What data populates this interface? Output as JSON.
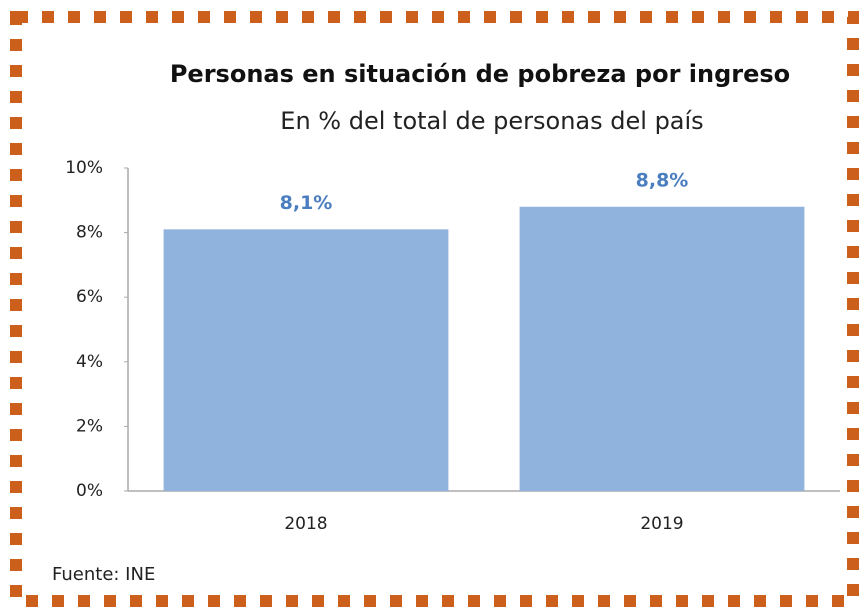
{
  "chart_data": {
    "type": "bar",
    "title": "Personas en situación de pobreza por ingreso",
    "subtitle": "En % del total de personas del país",
    "categories": [
      "2018",
      "2019"
    ],
    "values": [
      8.1,
      8.8
    ],
    "value_labels": [
      "8,1%",
      "8,8%"
    ],
    "color": "#8fb3dc",
    "ylim": [
      0,
      10
    ],
    "yticks": [
      {
        "value": 0,
        "label": "0%"
      },
      {
        "value": 2,
        "label": "2%"
      },
      {
        "value": 4,
        "label": "4%"
      },
      {
        "value": 6,
        "label": "6%"
      },
      {
        "value": 8,
        "label": "8%"
      },
      {
        "value": 10,
        "label": "10%"
      }
    ],
    "grid": false,
    "source": "Fuente: INE"
  }
}
